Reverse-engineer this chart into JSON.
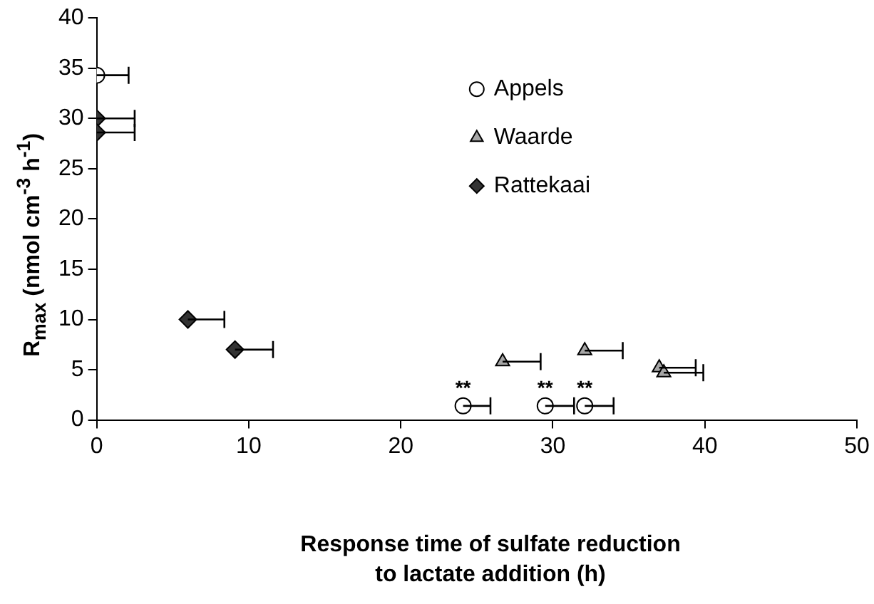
{
  "chart_data": {
    "type": "scatter",
    "xlabel": "Response time of sulfate reduction to lactate addition (h)",
    "ylabel": "R$_{max}$ (nmol cm$^{-3}$ h$^{-1}$)",
    "xlim": [
      0,
      50
    ],
    "xticks": [
      0,
      10,
      20,
      30,
      40,
      50
    ],
    "ylim": [
      0,
      40
    ],
    "yticks": [
      0,
      5,
      10,
      15,
      20,
      25,
      30,
      35,
      40
    ],
    "grid": false,
    "legend": "top right",
    "series": [
      {
        "name": "Appels",
        "color": "#ffffff",
        "marker": "circle",
        "x": [
          0,
          24.1,
          29.5,
          32.1
        ],
        "values": [
          34.3,
          1.4,
          1.4,
          1.4
        ],
        "xerrors": [
          [
            0,
            2.1
          ],
          [
            24.1,
            25.9
          ],
          [
            29.5,
            31.4
          ],
          [
            32.1,
            34.0
          ]
        ]
      },
      {
        "name": "Waarde",
        "color": "#a6a6a6",
        "marker": "triangle",
        "x": [
          26.7,
          32.1,
          37.0,
          37.3
        ],
        "values": [
          5.8,
          6.9,
          5.2,
          4.7
        ],
        "xerrors": [
          [
            26.7,
            29.2
          ],
          [
            32.1,
            34.6
          ],
          [
            37.0,
            39.4
          ],
          [
            37.3,
            39.9
          ]
        ]
      },
      {
        "name": "Rattekaai",
        "color": "#333333",
        "marker": "diamond",
        "x": [
          0,
          0,
          6.0,
          9.1
        ],
        "values": [
          30,
          28.6,
          10,
          7
        ],
        "xerrors": [
          [
            0,
            2.5
          ],
          [
            0,
            2.5
          ],
          [
            6.0,
            8.4
          ],
          [
            9.1,
            11.6
          ]
        ]
      }
    ],
    "annotations": [
      {
        "text": "**",
        "x": 24.1,
        "y": 1.4
      },
      {
        "text": "**",
        "x": 29.5,
        "y": 1.4
      },
      {
        "text": "**",
        "x": 32.1,
        "y": 1.4
      }
    ]
  }
}
